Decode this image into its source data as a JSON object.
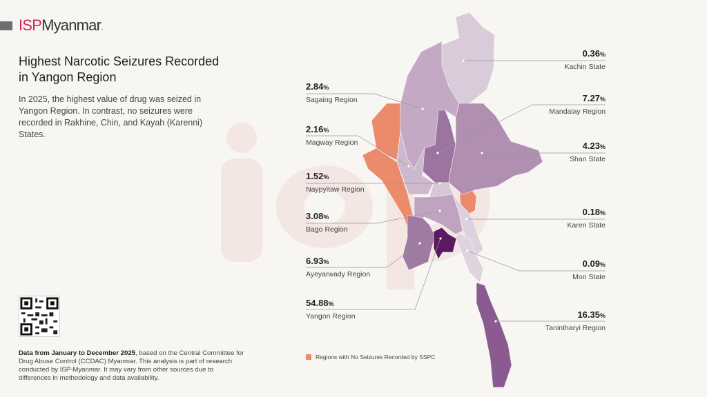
{
  "brand": {
    "isp": "ISP",
    "name": "Myanmar",
    "dot": "."
  },
  "title": "Highest Narcotic Seizures Recorded in Yangon Region",
  "description": "In 2025, the highest value of drug was seized in Yangon Region. In contrast, no seizures were recorded in Rakhine, Chin, and Kayah (Karenni) States.",
  "footnote": {
    "bold": "Data from January to December 2025",
    "rest": ", based on the Central Committee for Drug Abuse Control (CCDAC) Myanmar. This analysis is part of research conducted by ISP-Myanmar. It may vary from other sources due to differences in methodology and data availability."
  },
  "legend": {
    "label": "Regions with No Seizures Recorded by SSPC",
    "color": "#ec8a6c"
  },
  "pct_sign": "%",
  "regions": [
    {
      "name": "Kachin State",
      "value": "0.36",
      "color": "#d9cbd9"
    },
    {
      "name": "Sagaing Region",
      "value": "2.84",
      "color": "#c4a9c4"
    },
    {
      "name": "Mandalay Region",
      "value": "7.27",
      "color": "#9b74a0"
    },
    {
      "name": "Magway Region",
      "value": "2.16",
      "color": "#cdb9cd"
    },
    {
      "name": "Shan State",
      "value": "4.23",
      "color": "#b08fb0"
    },
    {
      "name": "Naypyitaw Region",
      "value": "1.52",
      "color": "#d6c7d6"
    },
    {
      "name": "Karen State",
      "value": "0.18",
      "color": "#ddd1dd"
    },
    {
      "name": "Bago Region",
      "value": "3.08",
      "color": "#bfa3c0"
    },
    {
      "name": "Ayeyarwady Region",
      "value": "6.93",
      "color": "#9f7aa3"
    },
    {
      "name": "Mon State",
      "value": "0.09",
      "color": "#dfd3df"
    },
    {
      "name": "Yangon Region",
      "value": "54.88",
      "color": "#5c1860"
    },
    {
      "name": "Tanintharyi Region",
      "value": "16.35",
      "color": "#8a5a91"
    }
  ],
  "no_seizure_regions": [
    "Rakhine",
    "Chin",
    "Kayah (Karenni)"
  ]
}
